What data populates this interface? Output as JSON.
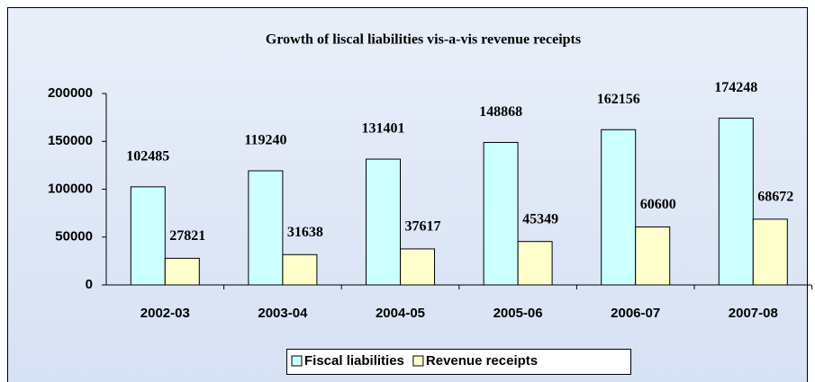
{
  "chart_data": {
    "type": "bar",
    "title": "Growth of liscal liabilities vis-a-vis revenue receipts",
    "categories": [
      "2002-03",
      "2003-04",
      "2004-05",
      "2005-06",
      "2006-07",
      "2007-08"
    ],
    "series": [
      {
        "name": "Fiscal liabilities",
        "color": "#ccffff",
        "values": [
          102485,
          119240,
          131401,
          148868,
          162156,
          174248
        ]
      },
      {
        "name": "Revenue receipts",
        "color": "#ffffcc",
        "values": [
          27821,
          31638,
          37617,
          45349,
          60600,
          68672
        ]
      }
    ],
    "ylim": [
      0,
      200000
    ],
    "yticks": [
      0,
      50000,
      100000,
      150000,
      200000
    ],
    "legend": "bottom"
  }
}
